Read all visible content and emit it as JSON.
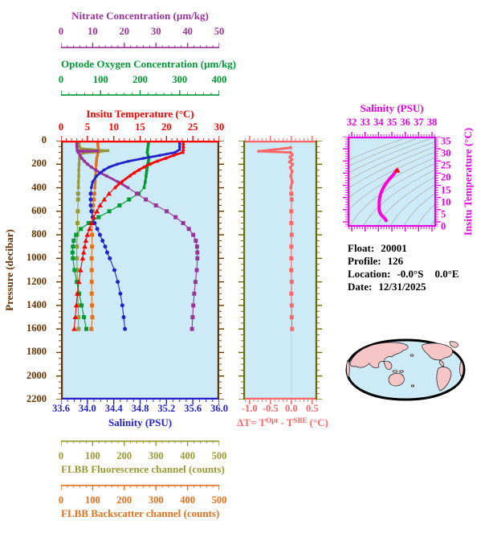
{
  "figure": {
    "plot_background": "#CDEAF7",
    "contour_color": "#A9A9A9",
    "map_land_color": "#F6C5C5",
    "map_ocean_color": "#CDEAF7"
  },
  "float_info": {
    "rows": [
      {
        "key": "float",
        "label": "Float:",
        "value": "20001"
      },
      {
        "key": "profile",
        "label": "Profile:",
        "value": "126"
      },
      {
        "key": "location",
        "label": "Location:",
        "value": "-0.0°S",
        "value2": "0.0°E"
      },
      {
        "key": "date",
        "label": "Date:",
        "value": "12/31/2025"
      }
    ]
  },
  "axes": {
    "nitrate": {
      "title": "Nitrate Concentration (µm/kg)",
      "color": "#993399",
      "min": 0,
      "max": 50,
      "major": 10,
      "minor": 2,
      "labels": [
        "0",
        "10",
        "20",
        "30",
        "40",
        "50"
      ]
    },
    "oxygen": {
      "title": "Optode Oxygen Concentration (µm/kg)",
      "color": "#009933",
      "min": 0,
      "max": 400,
      "major": 100,
      "minor": 20,
      "labels": [
        "0",
        "100",
        "200",
        "300",
        "400"
      ]
    },
    "temperature": {
      "title": "Insitu Temperature (°C)",
      "color": "#FF0000",
      "min": 0,
      "max": 30,
      "major": 5,
      "minor": 1,
      "labels": [
        "0",
        "5",
        "10",
        "15",
        "20",
        "25",
        "30"
      ]
    },
    "salinity": {
      "title": "Salinity (PSU)",
      "color": "#2222CC",
      "min": 33.6,
      "max": 36.0,
      "major": 0.4,
      "minor": 0.1,
      "labels": [
        "33.6",
        "34.0",
        "34.4",
        "34.8",
        "35.2",
        "35.6",
        "36.0"
      ]
    },
    "fluorescence": {
      "title": "FLBB Fluorescence channel (counts)",
      "color": "#999933",
      "min": 0,
      "max": 500,
      "major": 100,
      "minor": 20,
      "labels": [
        "0",
        "100",
        "200",
        "300",
        "400",
        "500"
      ]
    },
    "backscatter": {
      "title": "FLBB Backscatter channel (counts)",
      "color": "#E2711D",
      "min": 0,
      "max": 500,
      "major": 100,
      "minor": 20,
      "labels": [
        "0",
        "100",
        "200",
        "300",
        "400",
        "500"
      ]
    },
    "pressure": {
      "title": "Pressure (decibar)",
      "color": "#663300",
      "min": 0,
      "max": 2200,
      "major": 200,
      "minor": 50,
      "labels": [
        "0",
        "200",
        "400",
        "600",
        "800",
        "1000",
        "1200",
        "1400",
        "1600",
        "1800",
        "2000",
        "2200"
      ]
    },
    "delta_t": {
      "title_parts": {
        "prefix": "ΔT= T",
        "sup1": "Opt",
        "mid": " - T",
        "sup2": "SBE",
        "suffix": " (°C)"
      },
      "color": "#FF6666",
      "side_color": "#6B6B00",
      "min": -1.15,
      "max": 0.62,
      "major": 0.5,
      "minor": 0.1,
      "labels": [
        "-1.0",
        "-0.5",
        "0.0",
        "0.5"
      ]
    },
    "ts_salinity": {
      "title": "Salinity (PSU)",
      "color": "#E800E8",
      "min": 31.7,
      "max": 38.3,
      "major": 1,
      "minor": 0.2,
      "labels": [
        "32",
        "33",
        "34",
        "35",
        "36",
        "37",
        "38"
      ]
    },
    "ts_temperature": {
      "title": "Insitu Temperature (°C)",
      "color": "#E800E8",
      "min": 0,
      "max": 37,
      "major": 5,
      "minor": 1,
      "labels": [
        "0",
        "5",
        "10",
        "15",
        "20",
        "25",
        "30",
        "35"
      ]
    }
  },
  "chart_data": [
    {
      "id": "profile-plot",
      "type": "line",
      "ylabel": "Pressure (decibar)",
      "ylim": [
        0,
        2200
      ],
      "y_direction": "down",
      "series": [
        {
          "name": "FLBB Fluorescence channel (counts)",
          "axis": "fluorescence",
          "color": "#999933",
          "marker": "square",
          "xlim": [
            0,
            500
          ],
          "pressure": [
            0,
            25,
            50,
            65,
            75,
            85,
            95,
            105,
            125,
            150,
            200,
            250,
            300,
            350,
            400,
            450,
            500,
            600,
            700,
            800,
            900,
            1000,
            1100,
            1200,
            1300,
            1400,
            1500,
            1600
          ],
          "values": [
            57,
            57,
            58,
            62,
            95,
            148,
            118,
            70,
            60,
            58,
            57,
            56,
            56,
            55,
            55,
            54,
            54,
            53,
            52,
            51,
            50,
            50,
            51,
            52,
            53,
            54,
            55,
            55
          ]
        },
        {
          "name": "FLBB Backscatter channel (counts)",
          "axis": "backscatter",
          "color": "#E2711D",
          "marker": "square",
          "xlim": [
            0,
            500
          ],
          "pressure": [
            0,
            25,
            50,
            75,
            100,
            125,
            150,
            175,
            200,
            250,
            300,
            350,
            400,
            450,
            500,
            550,
            600,
            700,
            800,
            900,
            1000,
            1100,
            1200,
            1300,
            1400,
            1500,
            1600
          ],
          "values": [
            116,
            116,
            117,
            118,
            117,
            115,
            113,
            112,
            111,
            110,
            109,
            108,
            107,
            105,
            103,
            101,
            100,
            99,
            98,
            98,
            97,
            97,
            97,
            97,
            98,
            99,
            96
          ]
        },
        {
          "name": "Optode Oxygen Concentration (µm/kg)",
          "axis": "oxygen",
          "color": "#009933",
          "marker": "square",
          "xlim": [
            0,
            400
          ],
          "pressure": [
            0,
            25,
            50,
            75,
            100,
            125,
            150,
            175,
            200,
            225,
            250,
            275,
            300,
            350,
            400,
            450,
            500,
            550,
            600,
            650,
            700,
            750,
            800,
            850,
            900,
            950,
            1000,
            1100,
            1200,
            1300,
            1400,
            1500,
            1600
          ],
          "values": [
            221,
            221,
            220,
            219,
            218,
            220,
            222,
            221,
            219,
            218,
            217,
            216,
            215,
            213,
            210,
            196,
            172,
            148,
            122,
            95,
            70,
            50,
            38,
            32,
            30,
            29,
            30,
            34,
            40,
            46,
            52,
            58,
            64
          ]
        },
        {
          "name": "Nitrate Concentration (µm/kg)",
          "axis": "nitrate",
          "color": "#993399",
          "marker": "square",
          "xlim": [
            0,
            50
          ],
          "pressure": [
            0,
            25,
            50,
            75,
            85,
            88,
            95,
            100,
            125,
            150,
            175,
            200,
            225,
            250,
            275,
            300,
            350,
            400,
            450,
            500,
            550,
            600,
            650,
            700,
            750,
            800,
            850,
            900,
            950,
            1000,
            1100,
            1200,
            1300,
            1400,
            1500,
            1600
          ],
          "values": [
            5.0,
            5.0,
            5.0,
            5.1,
            5.2,
            11.5,
            5.4,
            5.5,
            6.0,
            6.6,
            7.4,
            8.4,
            9.6,
            11.0,
            12.6,
            14.4,
            18.0,
            21.2,
            24.0,
            26.8,
            30.0,
            33.4,
            36.2,
            38.6,
            40.4,
            41.8,
            42.6,
            43.0,
            43.1,
            43.1,
            42.9,
            42.5,
            42.1,
            41.8,
            41.6,
            41.4
          ]
        },
        {
          "name": "Salinity (PSU)",
          "axis": "salinity",
          "color": "#2222CC",
          "marker": "circle",
          "xlim": [
            33.6,
            36.0
          ],
          "pressure": [
            0,
            25,
            50,
            75,
            100,
            125,
            150,
            175,
            200,
            225,
            250,
            275,
            300,
            350,
            400,
            450,
            500,
            550,
            600,
            650,
            700,
            750,
            800,
            850,
            900,
            950,
            1000,
            1100,
            1200,
            1300,
            1400,
            1500,
            1600
          ],
          "values": [
            35.4,
            35.4,
            35.4,
            35.4,
            35.33,
            35.1,
            34.85,
            34.62,
            34.45,
            34.33,
            34.25,
            34.19,
            34.14,
            34.08,
            34.06,
            34.05,
            34.05,
            34.05,
            34.06,
            34.08,
            34.11,
            34.15,
            34.19,
            34.23,
            34.27,
            34.3,
            34.34,
            34.41,
            34.46,
            34.5,
            34.53,
            34.55,
            34.57
          ]
        },
        {
          "name": "Insitu Temperature (°C)",
          "axis": "temperature",
          "color": "#FF0000",
          "marker": "triangle",
          "xlim": [
            0,
            30
          ],
          "pressure": [
            0,
            25,
            50,
            75,
            100,
            125,
            150,
            175,
            200,
            225,
            250,
            275,
            300,
            350,
            400,
            450,
            500,
            550,
            600,
            650,
            700,
            750,
            800,
            850,
            900,
            950,
            1000,
            1100,
            1200,
            1300,
            1400,
            1500,
            1600
          ],
          "values": [
            23.2,
            23.2,
            23.2,
            23.2,
            23.1,
            21.3,
            19.8,
            18.2,
            16.8,
            15.7,
            14.7,
            13.8,
            13.0,
            11.5,
            10.2,
            9.1,
            8.2,
            7.4,
            6.8,
            6.2,
            5.8,
            5.4,
            5.0,
            4.7,
            4.5,
            4.3,
            4.1,
            3.7,
            3.4,
            3.1,
            2.9,
            2.7,
            2.5
          ]
        }
      ]
    },
    {
      "id": "delta-t-panel",
      "type": "line",
      "xlabel": "ΔT= T^Opt - T^SBE (°C)",
      "xlim": [
        -1.15,
        0.62
      ],
      "ylim": [
        0,
        2200
      ],
      "zero_line": true,
      "series": [
        {
          "name": "ΔT",
          "color": "#FF6666",
          "marker": "square",
          "pressure": [
            60,
            90,
            100,
            120,
            140,
            160,
            180,
            200,
            230,
            260,
            300,
            350,
            400,
            450,
            500,
            600,
            700,
            800,
            900,
            1000,
            1100,
            1200,
            1300,
            1400,
            1500,
            1600
          ],
          "values": [
            -0.02,
            -0.78,
            -0.02,
            0.02,
            -0.03,
            0.01,
            -0.04,
            0.03,
            -0.02,
            0.02,
            -0.01,
            0.02,
            -0.01,
            0.0,
            0.01,
            0.0,
            0.0,
            0.01,
            0.0,
            0.0,
            0.0,
            0.01,
            0.0,
            0.01,
            0.01,
            0.02
          ]
        }
      ]
    },
    {
      "id": "ts-diagram",
      "type": "line",
      "xlabel": "Salinity (PSU)",
      "ylabel": "Insitu Temperature (°C)",
      "xlim": [
        31.7,
        38.3
      ],
      "ylim": [
        0,
        37
      ],
      "isopycnals": {
        "min": 20,
        "max": 30.4,
        "step": 0.8,
        "color": "#A9A9A9"
      },
      "curve": {
        "color": "#FF00DD",
        "tip_color": "#FF0000",
        "temperature": [
          2.5,
          2.7,
          2.9,
          3.1,
          3.4,
          3.7,
          4.1,
          4.5,
          5.0,
          5.4,
          5.8,
          6.2,
          6.8,
          7.4,
          8.2,
          9.1,
          10.2,
          11.5,
          13.0,
          14.7,
          16.8,
          18.2,
          19.8,
          21.3,
          23.1,
          23.2
        ],
        "salinity": [
          34.57,
          34.55,
          34.53,
          34.5,
          34.46,
          34.41,
          34.34,
          34.27,
          34.19,
          34.15,
          34.11,
          34.08,
          34.06,
          34.05,
          34.05,
          34.05,
          34.06,
          34.08,
          34.14,
          34.25,
          34.45,
          34.62,
          34.85,
          35.1,
          35.33,
          35.4
        ]
      }
    }
  ]
}
